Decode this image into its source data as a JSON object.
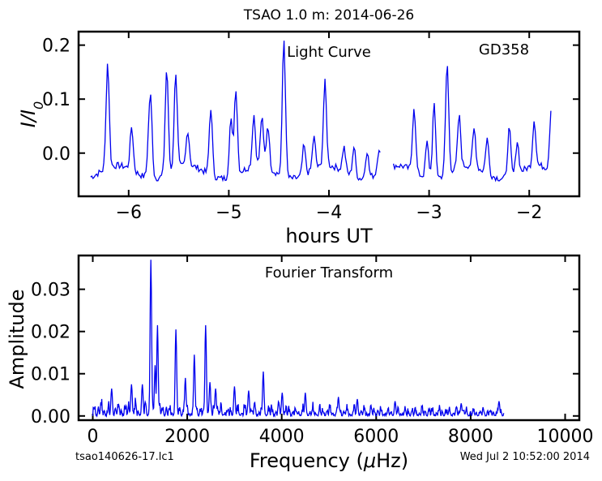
{
  "figure": {
    "title": "TSAO 1.0 m:  2014-06-26",
    "footer_left": "tsao140626-17.lc1",
    "footer_right": "Wed Jul  2 10:52:00 2014"
  },
  "colors": {
    "series": "#0000ee",
    "axes": "#000000",
    "background": "#ffffff"
  },
  "chart_data": [
    {
      "type": "line",
      "panel": "top",
      "annotations": [
        "Light Curve",
        "GD358"
      ],
      "xlabel": "hours UT",
      "ylabel": "I/I0",
      "xlim": [
        -6.5,
        -1.5
      ],
      "ylim": [
        -0.08,
        0.225
      ],
      "xticks": [
        -6,
        -5,
        -4,
        -3,
        -2
      ],
      "xtick_labels": [
        "−6",
        "−5",
        "−4",
        "−3",
        "−2"
      ],
      "yticks": [
        0.0,
        0.1,
        0.2
      ],
      "ytick_labels": [
        "0.0",
        "0.1",
        "0.2"
      ],
      "gaps": [
        [
          -3.48,
          -3.36
        ]
      ],
      "peaks": [
        [
          -6.21,
          0.16
        ],
        [
          -5.97,
          0.045
        ],
        [
          -5.8,
          0.015
        ],
        [
          -5.62,
          0.16
        ],
        [
          -5.78,
          0.095
        ],
        [
          -5.53,
          0.145
        ],
        [
          -5.41,
          0.03
        ],
        [
          -5.18,
          0.09
        ],
        [
          -4.98,
          0.07
        ],
        [
          -4.93,
          0.125
        ],
        [
          -4.75,
          0.06
        ],
        [
          -4.67,
          0.055
        ],
        [
          -4.61,
          0.045
        ],
        [
          -4.45,
          0.22
        ],
        [
          -4.25,
          0.02
        ],
        [
          -4.15,
          0.025
        ],
        [
          -4.04,
          0.12
        ],
        [
          -3.85,
          0.01
        ],
        [
          -3.75,
          0.02
        ],
        [
          -3.62,
          0.015
        ],
        [
          -3.5,
          0.01
        ],
        [
          -3.15,
          0.085
        ],
        [
          -3.02,
          0.03
        ],
        [
          -2.95,
          0.1
        ],
        [
          -2.82,
          0.17
        ],
        [
          -2.7,
          0.06
        ],
        [
          -2.55,
          0.035
        ],
        [
          -2.42,
          0.03
        ],
        [
          -2.2,
          0.055
        ],
        [
          -2.12,
          0.025
        ],
        [
          -1.95,
          0.05
        ],
        [
          -1.78,
          0.08
        ]
      ]
    },
    {
      "type": "line",
      "panel": "bottom",
      "annotations": [
        "Fourier Transform"
      ],
      "xlabel": "Frequency (μHz)",
      "ylabel": "Amplitude",
      "xlim": [
        -300,
        10300
      ],
      "ylim": [
        -0.001,
        0.038
      ],
      "xticks": [
        0,
        2000,
        4000,
        6000,
        8000,
        10000
      ],
      "xtick_labels": [
        "0",
        "2000",
        "4000",
        "6000",
        "8000",
        "10000"
      ],
      "yticks": [
        0.0,
        0.01,
        0.02,
        0.03
      ],
      "ytick_labels": [
        "0.00",
        "0.01",
        "0.02",
        "0.03"
      ],
      "x_range": [
        0,
        8700
      ],
      "peaks": [
        [
          1230,
          0.037
        ],
        [
          1320,
          0.012
        ],
        [
          1370,
          0.0215
        ],
        [
          1760,
          0.0205
        ],
        [
          2150,
          0.0145
        ],
        [
          2390,
          0.0215
        ],
        [
          2480,
          0.008
        ],
        [
          3610,
          0.0105
        ],
        [
          4010,
          0.0055
        ],
        [
          3000,
          0.007
        ],
        [
          400,
          0.0065
        ],
        [
          820,
          0.0075
        ],
        [
          1050,
          0.0075
        ],
        [
          1960,
          0.009
        ],
        [
          2600,
          0.0065
        ],
        [
          3300,
          0.006
        ],
        [
          4500,
          0.0055
        ],
        [
          5200,
          0.0045
        ],
        [
          5600,
          0.004
        ],
        [
          6400,
          0.0035
        ],
        [
          7800,
          0.003
        ],
        [
          8600,
          0.0035
        ]
      ]
    }
  ]
}
